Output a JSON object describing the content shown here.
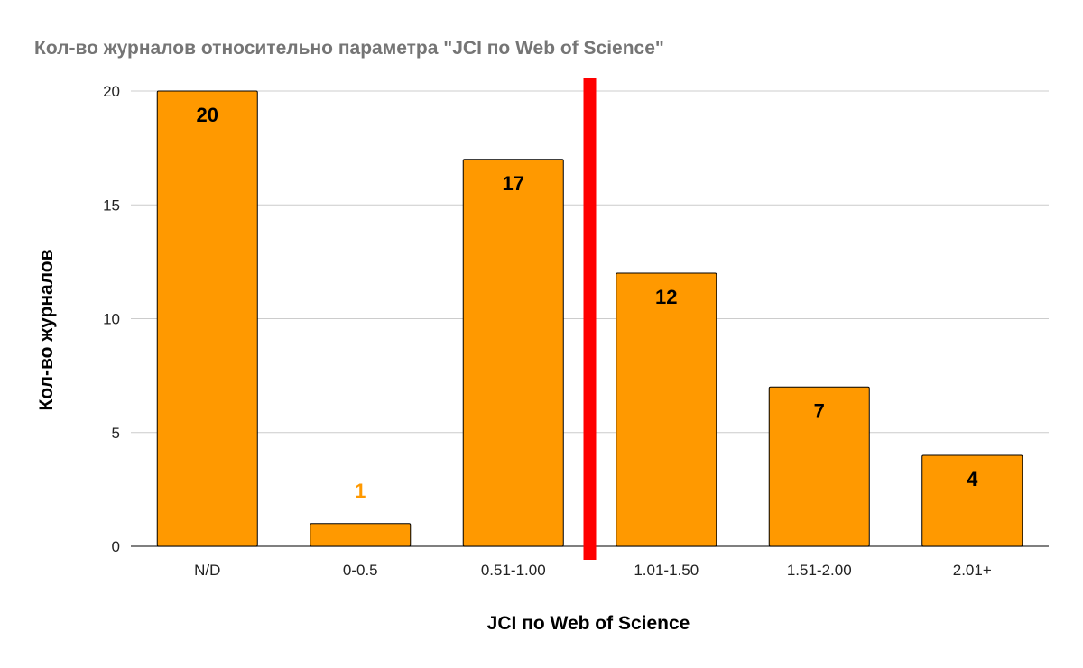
{
  "chart_data": {
    "type": "bar",
    "title": "Кол-во журналов относительно параметра \"JCI по Web of Science\"",
    "xlabel": "JCI по Web of Science",
    "ylabel": "Кол-во журналов",
    "categories": [
      "N/D",
      "0-0.5",
      "0.51-1.00",
      "1.01-1.50",
      "1.51-2.00",
      "2.01+"
    ],
    "values": [
      20,
      1,
      17,
      12,
      7,
      4
    ],
    "data_labels": [
      "20",
      "1",
      "17",
      "12",
      "7",
      "4"
    ],
    "ylim": [
      0,
      20
    ],
    "yticks": [
      "0",
      "5",
      "10",
      "15",
      "20"
    ],
    "grid": true,
    "legend": "none",
    "colors": {
      "bar": "#ff9900",
      "bar_outline": "#000000",
      "label_inside": "#000000",
      "label_outside": "#ff9900",
      "separator": "#ff0000",
      "grid": "#cccccc",
      "title": "#757575"
    },
    "annotations": [
      {
        "type": "vertical-line",
        "between": [
          "0.51-1.00",
          "1.01-1.50"
        ],
        "color": "#ff0000"
      }
    ]
  }
}
